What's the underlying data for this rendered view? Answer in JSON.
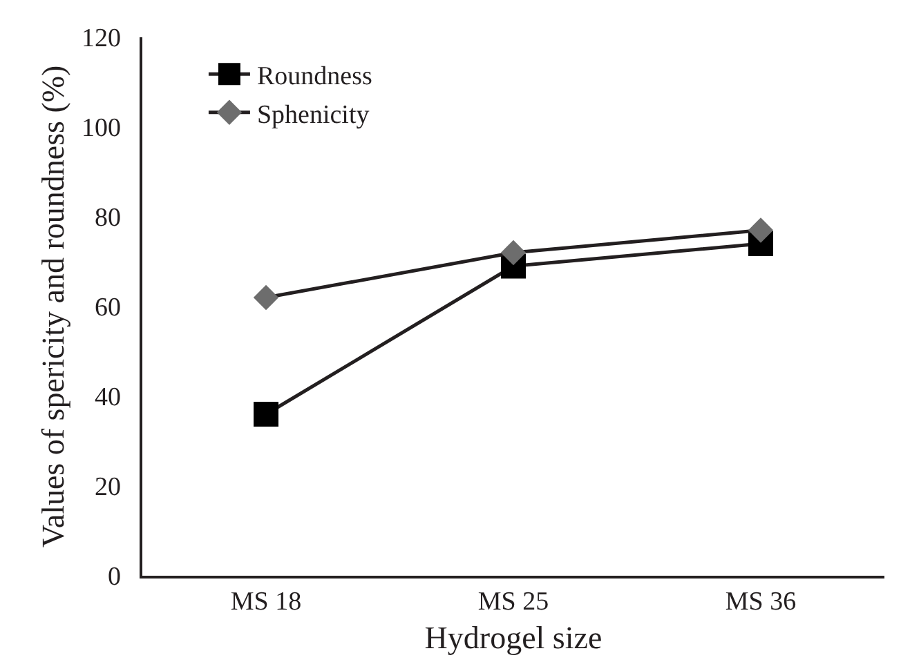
{
  "chart_data": {
    "type": "line",
    "xlabel": "Hydrogel size",
    "ylabel": "Values of spericity and roundness (%)",
    "categories": [
      "MS 18",
      "MS 25",
      "MS 36"
    ],
    "series": [
      {
        "name": "Roundness",
        "color": "#000000",
        "marker": "square",
        "values": [
          36,
          69,
          74
        ]
      },
      {
        "name": "Sphenicity",
        "color": "#6d6d6d",
        "marker": "diamond",
        "values": [
          62,
          72,
          77
        ]
      }
    ],
    "ylim": [
      0,
      120
    ],
    "yticks": [
      0,
      20,
      40,
      60,
      80,
      100,
      120
    ],
    "legend": "top left"
  }
}
